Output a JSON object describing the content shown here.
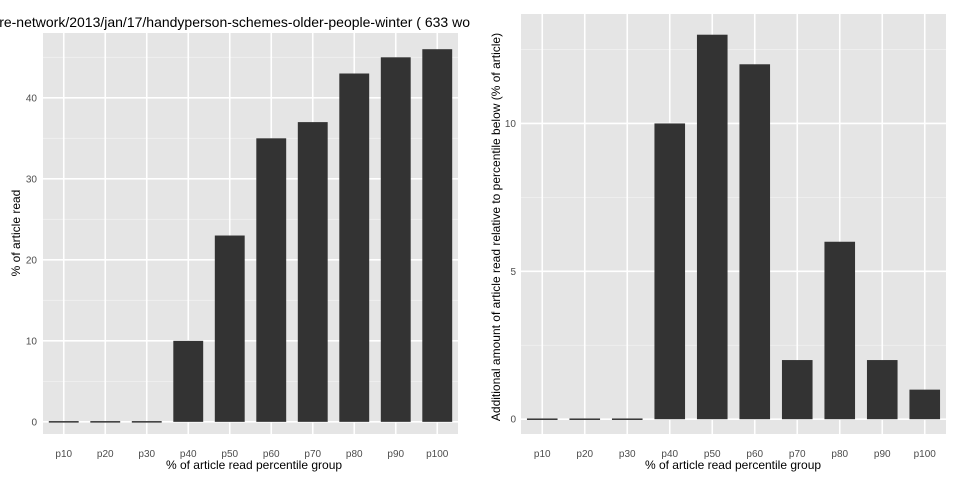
{
  "chart_data": [
    {
      "type": "bar",
      "title": "re-network/2013/jan/17/handyperson-schemes-older-people-winter ( 633 wo",
      "xlabel": "% of article read percentile group",
      "ylabel": "% of article read",
      "categories": [
        "p10",
        "p20",
        "p30",
        "p40",
        "p50",
        "p60",
        "p70",
        "p80",
        "p90",
        "p100"
      ],
      "values": [
        0,
        0,
        0,
        10,
        23,
        35,
        37,
        43,
        45,
        46
      ],
      "ylim": [
        -1.5,
        48
      ],
      "yticks": [
        0,
        10,
        20,
        30,
        40
      ],
      "grid": true,
      "colors": {
        "bar": "#333333",
        "panel": "#e5e5e5",
        "grid": "#ffffff",
        "grid_minor": "#f2f2f2"
      }
    },
    {
      "type": "bar",
      "title": "",
      "xlabel": "% of article read percentile group",
      "ylabel": "Additional amount of article read relative to percentile below (% of article)",
      "categories": [
        "p10",
        "p20",
        "p30",
        "p40",
        "p50",
        "p60",
        "p70",
        "p80",
        "p90",
        "p100"
      ],
      "values": [
        0,
        0,
        0,
        10,
        13,
        12,
        2,
        6,
        2,
        1
      ],
      "ylim": [
        -0.5,
        13.7
      ],
      "yticks": [
        0,
        5,
        10
      ],
      "grid": true,
      "colors": {
        "bar": "#333333",
        "panel": "#e5e5e5",
        "grid": "#ffffff",
        "grid_minor": "#f2f2f2"
      }
    }
  ]
}
